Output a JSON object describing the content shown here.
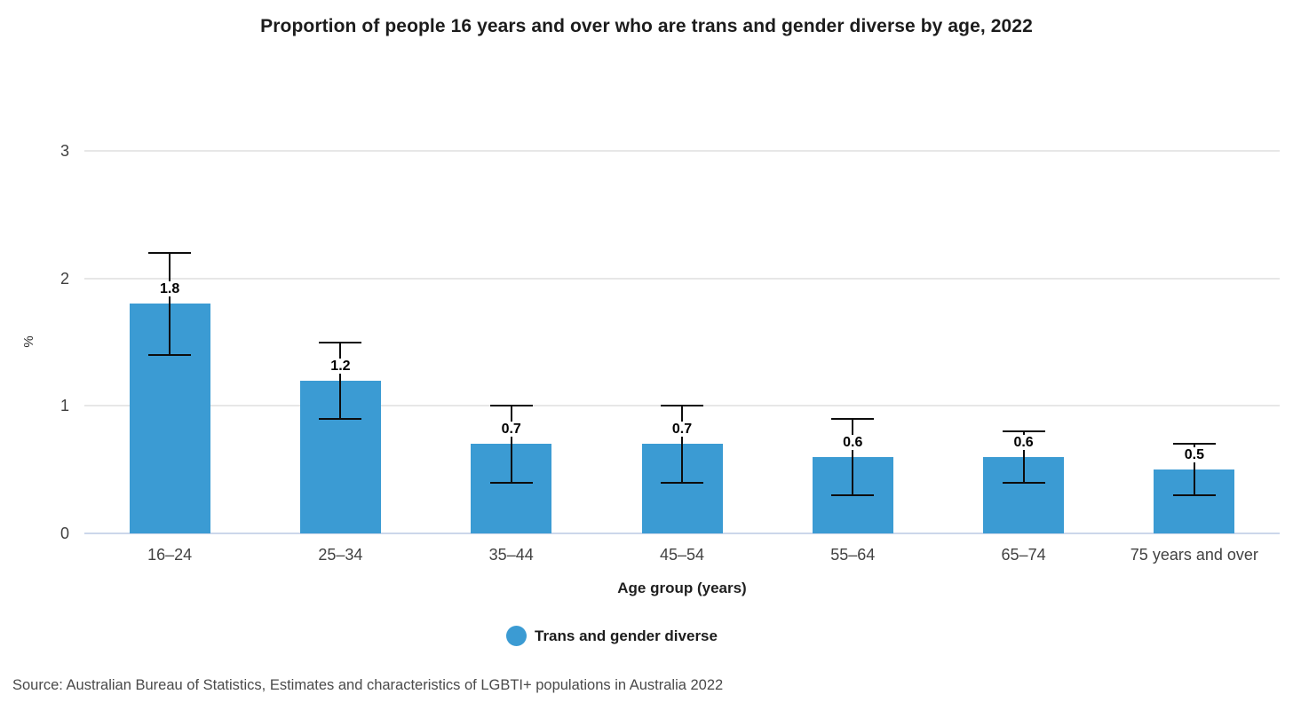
{
  "title": "Proportion of people 16 years and over who are trans and gender diverse by age, 2022",
  "source": "Source: Australian Bureau of Statistics, Estimates and characteristics of LGBTI+ populations in Australia 2022",
  "colors": {
    "bar": "#3b9bd3",
    "error_bar": "#0d0d0d",
    "gridline": "#e7e7e7",
    "baseline": "#ccd7ea"
  },
  "chart_data": {
    "type": "bar",
    "title": "Proportion of people 16 years and over who are trans and gender diverse by age, 2022",
    "categories": [
      "16–24",
      "25–34",
      "35–44",
      "45–54",
      "55–64",
      "65–74",
      "75 years and over"
    ],
    "series": [
      {
        "name": "Trans and gender diverse",
        "values": [
          1.8,
          1.2,
          0.7,
          0.7,
          0.6,
          0.6,
          0.5
        ],
        "value_labels": [
          "1.8",
          "1.2",
          "0.7",
          "0.7",
          "0.6",
          "0.6",
          "0.5"
        ],
        "error_low": [
          1.4,
          0.9,
          0.4,
          0.4,
          0.3,
          0.4,
          0.3
        ],
        "error_high": [
          2.2,
          1.5,
          1.0,
          1.0,
          0.9,
          0.8,
          0.7
        ]
      }
    ],
    "xlabel": "Age group (years)",
    "ylabel": "%",
    "ylim": [
      0,
      3
    ],
    "yticks": [
      0,
      1,
      2,
      3
    ],
    "grid": true,
    "legend_position": "bottom"
  }
}
